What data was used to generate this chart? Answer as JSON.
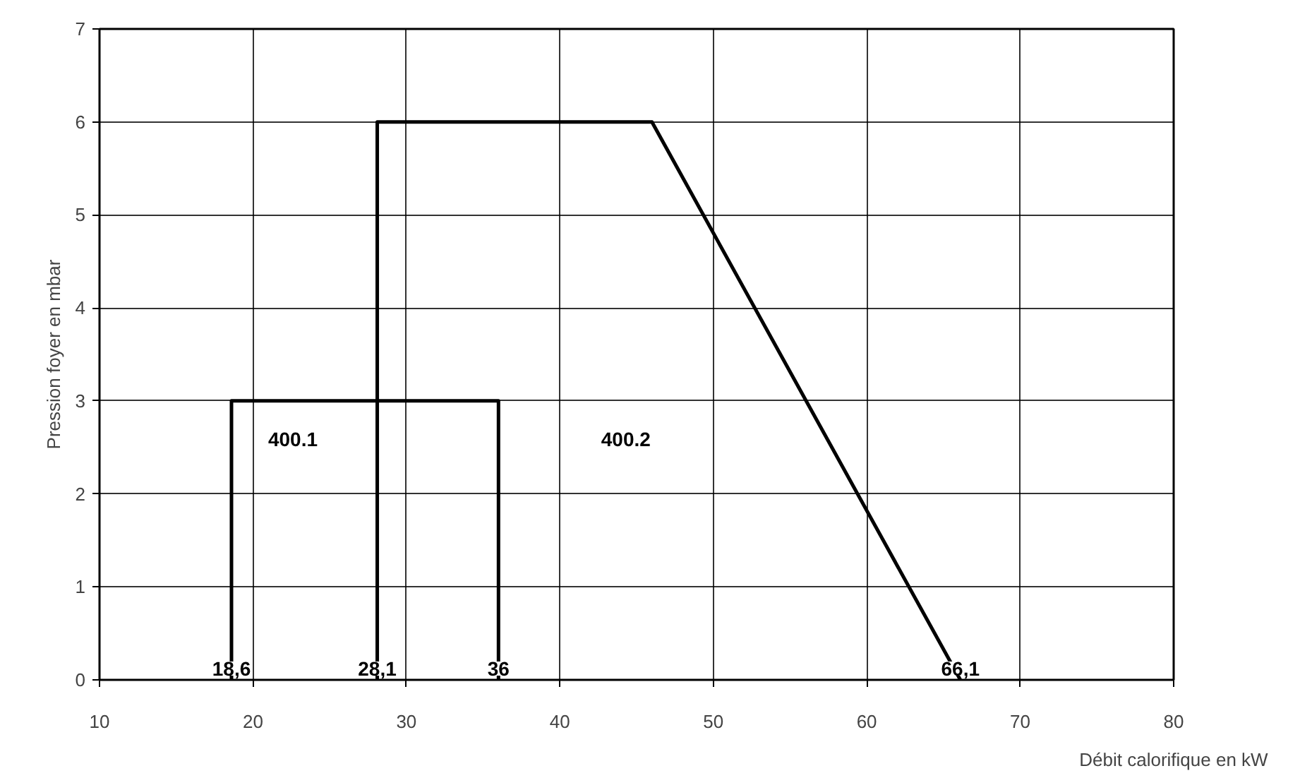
{
  "chart_data": {
    "type": "line",
    "xlabel": "Débit calorifique en kW",
    "ylabel": "Pression foyer en mbar",
    "series": [
      {
        "color": "#000000",
        "x": [
          18.6,
          18.6,
          36,
          36
        ],
        "values": [
          0,
          3,
          3,
          0
        ]
      },
      {
        "color": "#000000",
        "x": [
          28.1,
          28.1,
          46,
          66.1
        ],
        "values": [
          0,
          6,
          6,
          0
        ]
      }
    ],
    "xlim": [
      10,
      80
    ],
    "xticks": [
      10,
      20,
      30,
      40,
      50,
      60,
      70,
      80
    ],
    "ylim": [
      0,
      7
    ],
    "yticks": [
      0,
      1,
      2,
      3,
      4,
      5,
      6,
      7
    ],
    "grid": true,
    "marker": "none",
    "line_style": "solid",
    "annotations": [
      "400.1",
      "400.2",
      {
        "text": "18,6",
        "x": 18.6,
        "y": 0
      },
      {
        "text": "28,1",
        "x": 28.1,
        "y": 0
      },
      {
        "text": "36",
        "x": 36,
        "y": 0
      },
      {
        "text": "66,1",
        "x": 66.1,
        "y": 0
      }
    ]
  }
}
